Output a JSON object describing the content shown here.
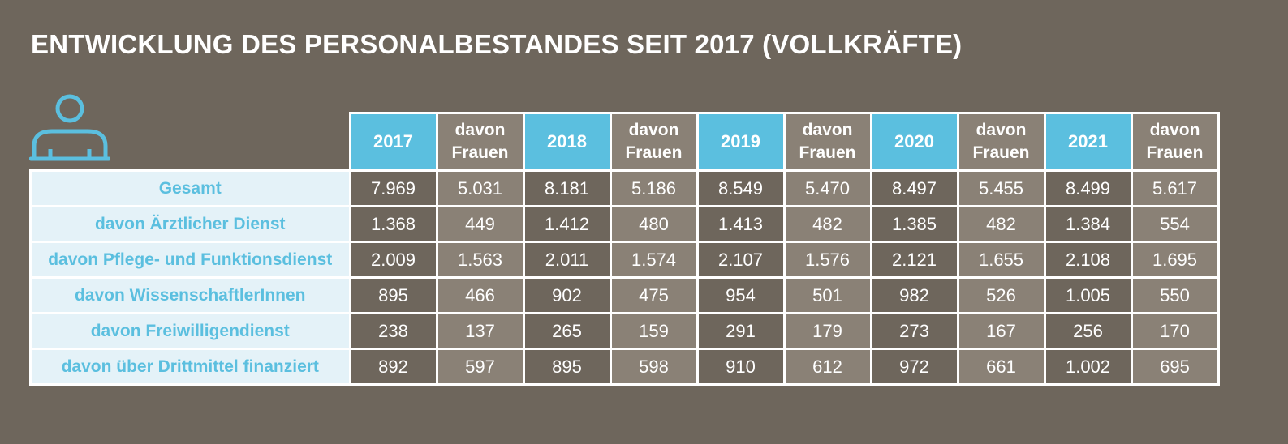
{
  "title": "ENTWICKLUNG DES PERSONALBESTANDES SEIT 2017 (VOLLKRÄFTE)",
  "icon": "person-icon",
  "colors": {
    "background": "#6e665c",
    "year_header": "#5bbfdf",
    "women_header": "#8a8176",
    "row_label_bg": "#e4f2f8",
    "row_label_text": "#5bbfdf"
  },
  "chart_data": {
    "type": "table",
    "columns": [
      "2017",
      "davon Frauen",
      "2018",
      "davon Frauen",
      "2019",
      "davon Frauen",
      "2020",
      "davon Frauen",
      "2021",
      "davon Frauen"
    ],
    "column_lines": [
      [
        "2017"
      ],
      [
        "davon",
        "Frauen"
      ],
      [
        "2018"
      ],
      [
        "davon",
        "Frauen"
      ],
      [
        "2019"
      ],
      [
        "davon",
        "Frauen"
      ],
      [
        "2020"
      ],
      [
        "davon",
        "Frauen"
      ],
      [
        "2021"
      ],
      [
        "davon",
        "Frauen"
      ]
    ],
    "rows": [
      {
        "label": "Gesamt",
        "values": [
          "7.969",
          "5.031",
          "8.181",
          "5.186",
          "8.549",
          "5.470",
          "8.497",
          "5.455",
          "8.499",
          "5.617"
        ]
      },
      {
        "label": "davon Ärztlicher Dienst",
        "values": [
          "1.368",
          "449",
          "1.412",
          "480",
          "1.413",
          "482",
          "1.385",
          "482",
          "1.384",
          "554"
        ]
      },
      {
        "label": "davon Pflege- und Funktionsdienst",
        "values": [
          "2.009",
          "1.563",
          "2.011",
          "1.574",
          "2.107",
          "1.576",
          "2.121",
          "1.655",
          "2.108",
          "1.695"
        ]
      },
      {
        "label": "davon WissenschaftlerInnen",
        "values": [
          "895",
          "466",
          "902",
          "475",
          "954",
          "501",
          "982",
          "526",
          "1.005",
          "550"
        ]
      },
      {
        "label": "davon Freiwilligendienst",
        "values": [
          "238",
          "137",
          "265",
          "159",
          "291",
          "179",
          "273",
          "167",
          "256",
          "170"
        ]
      },
      {
        "label": "davon über Drittmittel finanziert",
        "values": [
          "892",
          "597",
          "895",
          "598",
          "910",
          "612",
          "972",
          "661",
          "1.002",
          "695"
        ]
      }
    ]
  }
}
